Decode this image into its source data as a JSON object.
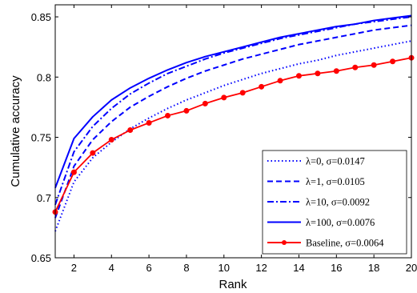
{
  "chart_data": {
    "type": "line",
    "title": "",
    "xlabel": "Rank",
    "ylabel": "Cumulative accuracy",
    "xlim": [
      1,
      20
    ],
    "ylim": [
      0.65,
      0.86
    ],
    "x_ticks": [
      2,
      4,
      6,
      8,
      10,
      12,
      14,
      16,
      18,
      20
    ],
    "y_ticks": [
      0.65,
      0.7,
      0.75,
      0.8,
      0.85
    ],
    "y_tick_labels": [
      "0.65",
      "0.7",
      "0.75",
      "0.8",
      "0.85"
    ],
    "grid": false,
    "legend_placement": "bottom-right",
    "x": [
      1,
      2,
      3,
      4,
      5,
      6,
      7,
      8,
      9,
      10,
      11,
      12,
      13,
      14,
      15,
      16,
      17,
      18,
      19,
      20
    ],
    "series": [
      {
        "name": "λ=0, σ=0.0147",
        "style": "dotted",
        "color": "#0000ff",
        "values": [
          0.672,
          0.713,
          0.733,
          0.746,
          0.757,
          0.766,
          0.774,
          0.781,
          0.787,
          0.793,
          0.798,
          0.803,
          0.807,
          0.811,
          0.814,
          0.818,
          0.821,
          0.824,
          0.827,
          0.83
        ]
      },
      {
        "name": "λ=1, σ=0.0105",
        "style": "dashed",
        "color": "#0000ff",
        "values": [
          0.683,
          0.726,
          0.748,
          0.763,
          0.775,
          0.784,
          0.792,
          0.799,
          0.805,
          0.81,
          0.815,
          0.819,
          0.823,
          0.827,
          0.83,
          0.833,
          0.836,
          0.839,
          0.841,
          0.843
        ]
      },
      {
        "name": "λ=10, σ=0.0092",
        "style": "dashdot",
        "color": "#0000ff",
        "values": [
          0.694,
          0.738,
          0.759,
          0.774,
          0.786,
          0.795,
          0.803,
          0.809,
          0.815,
          0.82,
          0.824,
          0.828,
          0.832,
          0.835,
          0.838,
          0.841,
          0.844,
          0.846,
          0.848,
          0.85
        ]
      },
      {
        "name": "λ=100, σ=0.0076",
        "style": "solid",
        "color": "#0000ff",
        "values": [
          0.708,
          0.749,
          0.767,
          0.781,
          0.791,
          0.799,
          0.806,
          0.812,
          0.817,
          0.821,
          0.825,
          0.829,
          0.833,
          0.836,
          0.839,
          0.842,
          0.844,
          0.847,
          0.849,
          0.851
        ]
      },
      {
        "name": "Baseline, σ=0.0064",
        "style": "solid-markers",
        "color": "#ff0000",
        "values": [
          0.688,
          0.721,
          0.737,
          0.748,
          0.756,
          0.762,
          0.768,
          0.772,
          0.778,
          0.783,
          0.787,
          0.792,
          0.797,
          0.801,
          0.803,
          0.805,
          0.808,
          0.81,
          0.813,
          0.816
        ]
      }
    ]
  }
}
